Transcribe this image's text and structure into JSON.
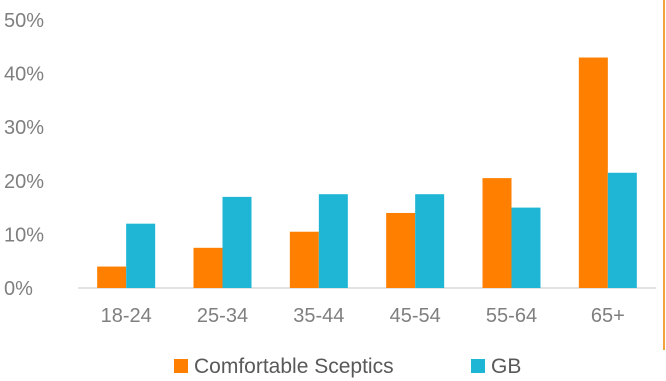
{
  "chart_data": {
    "type": "bar",
    "categories": [
      "18-24",
      "25-34",
      "35-44",
      "45-54",
      "55-64",
      "65+"
    ],
    "series": [
      {
        "name": "Comfortable Sceptics",
        "values": [
          4,
          7.5,
          10.5,
          14,
          20.5,
          43
        ],
        "color": "#ff7f00"
      },
      {
        "name": "GB",
        "values": [
          12,
          17,
          17.5,
          17.5,
          15,
          21.5
        ],
        "color": "#1fb6d6"
      }
    ],
    "y_ticks": [
      "0%",
      "10%",
      "20%",
      "30%",
      "40%",
      "50%"
    ],
    "ylim": [
      0,
      50
    ],
    "grid": false,
    "legend": "bottom-center",
    "title": "",
    "xlabel": "",
    "ylabel": ""
  }
}
